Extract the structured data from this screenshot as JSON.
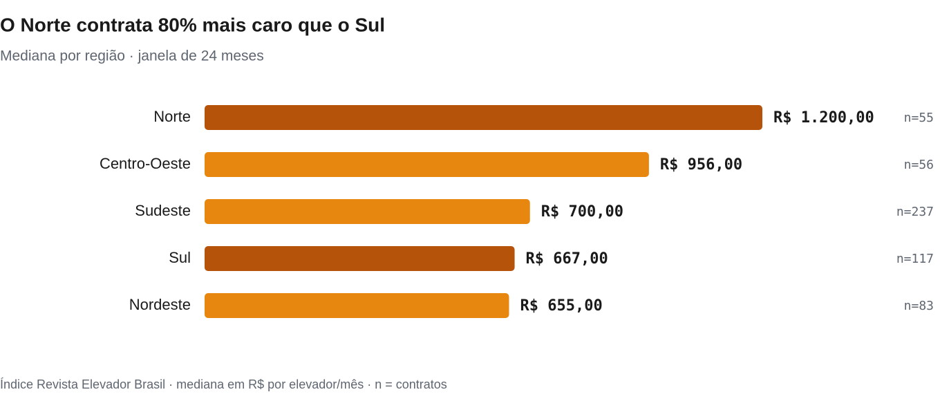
{
  "chart_data": {
    "type": "bar",
    "orientation": "horizontal",
    "title": "O Norte contrata 80% mais caro que o Sul",
    "subtitle": "Mediana por região · janela de 24 meses",
    "footer": "Índice Revista Elevador Brasil · mediana em R$ por elevador/mês · n = contratos",
    "categories": [
      "Norte",
      "Centro-Oeste",
      "Sudeste",
      "Sul",
      "Nordeste"
    ],
    "values": [
      1200,
      956,
      700,
      667,
      655
    ],
    "value_labels": [
      "R$ 1.200,00",
      "R$ 956,00",
      "R$ 700,00",
      "R$ 667,00",
      "R$ 655,00"
    ],
    "n_labels": [
      "n=55",
      "n=56",
      "n=237",
      "n=117",
      "n=83"
    ],
    "colors": [
      "#b5530b",
      "#e8870f",
      "#e8870f",
      "#b5530b",
      "#e8870f"
    ]
  }
}
